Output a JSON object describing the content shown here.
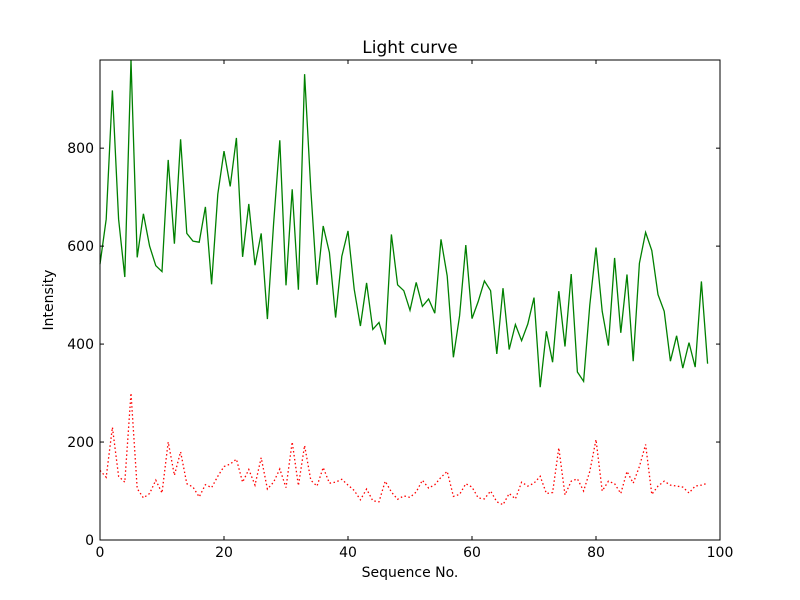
{
  "chart_data": {
    "type": "line",
    "title": "Light curve",
    "xlabel": "Sequence No.",
    "ylabel": "Intensity",
    "xlim": [
      0,
      100
    ],
    "ylim": [
      0,
      980
    ],
    "xticks": [
      0,
      20,
      40,
      60,
      80,
      100
    ],
    "yticks": [
      0,
      200,
      400,
      600,
      800
    ],
    "grid": false,
    "legend": "none",
    "series": [
      {
        "color": "#008000",
        "style": "solid",
        "x": [
          0,
          1,
          2,
          3,
          4,
          5,
          6,
          7,
          8,
          9,
          10,
          11,
          12,
          13,
          14,
          15,
          16,
          17,
          18,
          19,
          20,
          21,
          22,
          23,
          24,
          25,
          26,
          27,
          28,
          29,
          30,
          31,
          32,
          33,
          34,
          35,
          36,
          37,
          38,
          39,
          40,
          41,
          42,
          43,
          44,
          45,
          46,
          47,
          48,
          49,
          50,
          51,
          52,
          53,
          54,
          55,
          56,
          57,
          58,
          59,
          60,
          61,
          62,
          63,
          64,
          65,
          66,
          67,
          68,
          69,
          70,
          71,
          72,
          73,
          74,
          75,
          76,
          77,
          78,
          79,
          80,
          81,
          82,
          83,
          84,
          85,
          86,
          87,
          88,
          89,
          90,
          91,
          92,
          93,
          94,
          95,
          96,
          97,
          98
        ],
        "values": [
          563,
          655,
          918,
          655,
          537,
          980,
          577,
          666,
          600,
          560,
          548,
          776,
          605,
          818,
          626,
          610,
          608,
          680,
          522,
          706,
          794,
          722,
          821,
          578,
          686,
          561,
          626,
          451,
          646,
          816,
          520,
          716,
          511,
          951,
          716,
          521,
          641,
          587,
          454,
          579,
          631,
          512,
          437,
          525,
          430,
          444,
          399,
          624,
          521,
          509,
          469,
          526,
          477,
          492,
          463,
          614,
          539,
          373,
          458,
          602,
          452,
          487,
          529,
          509,
          380,
          514,
          389,
          440,
          407,
          441,
          495,
          312,
          426,
          363,
          508,
          395,
          543,
          343,
          324,
          480,
          597,
          467,
          397,
          576,
          423,
          542,
          365,
          565,
          628,
          591,
          501,
          467,
          365,
          417,
          351,
          403,
          353,
          528,
          360
        ]
      },
      {
        "color": "#ff0000",
        "style": "dotted",
        "x": [
          0,
          1,
          2,
          3,
          4,
          5,
          6,
          7,
          8,
          9,
          10,
          11,
          12,
          13,
          14,
          15,
          16,
          17,
          18,
          19,
          20,
          21,
          22,
          23,
          24,
          25,
          26,
          27,
          28,
          29,
          30,
          31,
          32,
          33,
          34,
          35,
          36,
          37,
          38,
          39,
          40,
          41,
          42,
          43,
          44,
          45,
          46,
          47,
          48,
          49,
          50,
          51,
          52,
          53,
          54,
          55,
          56,
          57,
          58,
          59,
          60,
          61,
          62,
          63,
          64,
          65,
          66,
          67,
          68,
          69,
          70,
          71,
          72,
          73,
          74,
          75,
          76,
          77,
          78,
          79,
          80,
          81,
          82,
          83,
          84,
          85,
          86,
          87,
          88,
          89,
          90,
          91,
          92,
          93,
          94,
          95,
          96,
          97,
          98
        ],
        "values": [
          142,
          128,
          230,
          130,
          118,
          300,
          105,
          86,
          95,
          122,
          96,
          200,
          132,
          180,
          115,
          108,
          88,
          113,
          107,
          130,
          150,
          155,
          165,
          118,
          144,
          112,
          168,
          104,
          118,
          145,
          107,
          200,
          111,
          193,
          122,
          110,
          148,
          116,
          118,
          124,
          112,
          101,
          82,
          104,
          80,
          78,
          120,
          98,
          83,
          90,
          87,
          98,
          122,
          106,
          113,
          128,
          140,
          89,
          93,
          115,
          108,
          86,
          84,
          100,
          78,
          72,
          95,
          84,
          118,
          110,
          116,
          130,
          95,
          97,
          188,
          92,
          120,
          125,
          100,
          140,
          205,
          100,
          120,
          115,
          95,
          140,
          116,
          150,
          195,
          93,
          110,
          120,
          112,
          110,
          108,
          96,
          110,
          112,
          116
        ]
      }
    ]
  }
}
